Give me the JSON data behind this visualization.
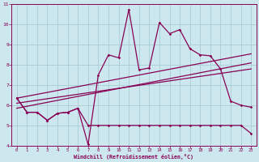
{
  "xlabel": "Windchill (Refroidissement éolien,°C)",
  "bg_color": "#cce8ee",
  "grid_color": "#aaccd4",
  "line_color": "#880055",
  "xlim": [
    -0.5,
    23.5
  ],
  "ylim": [
    4,
    11
  ],
  "xticks": [
    0,
    1,
    2,
    3,
    4,
    5,
    6,
    7,
    8,
    9,
    10,
    11,
    12,
    13,
    14,
    15,
    16,
    17,
    18,
    19,
    20,
    21,
    22,
    23
  ],
  "yticks": [
    4,
    5,
    6,
    7,
    8,
    9,
    10,
    11
  ],
  "series1_x": [
    0,
    1,
    2,
    3,
    4,
    5,
    6,
    7,
    8,
    9,
    10,
    11,
    12,
    13,
    14,
    15,
    16,
    17,
    18,
    19,
    20,
    21,
    22,
    23
  ],
  "series1_y": [
    6.35,
    5.65,
    5.65,
    5.25,
    5.6,
    5.65,
    5.85,
    4.05,
    7.5,
    8.5,
    8.35,
    10.75,
    7.75,
    7.85,
    10.1,
    9.55,
    9.75,
    8.8,
    8.5,
    8.45,
    7.8,
    6.2,
    6.0,
    5.9
  ],
  "series2_x": [
    0,
    1,
    2,
    3,
    4,
    5,
    6,
    7,
    8,
    9,
    10,
    11,
    12,
    13,
    14,
    15,
    16,
    17,
    18,
    19,
    20,
    21,
    22,
    23
  ],
  "series2_y": [
    6.35,
    5.65,
    5.65,
    5.25,
    5.6,
    5.65,
    5.85,
    5.0,
    5.0,
    5.0,
    5.0,
    5.0,
    5.0,
    5.0,
    5.0,
    5.0,
    5.0,
    5.0,
    5.0,
    5.0,
    5.0,
    5.0,
    5.0,
    4.6
  ],
  "regline1_x": [
    0,
    23
  ],
  "regline1_y": [
    6.1,
    7.8
  ],
  "regline2_x": [
    0,
    23
  ],
  "regline2_y": [
    5.85,
    8.1
  ],
  "regline3_x": [
    0,
    23
  ],
  "regline3_y": [
    6.35,
    8.55
  ]
}
